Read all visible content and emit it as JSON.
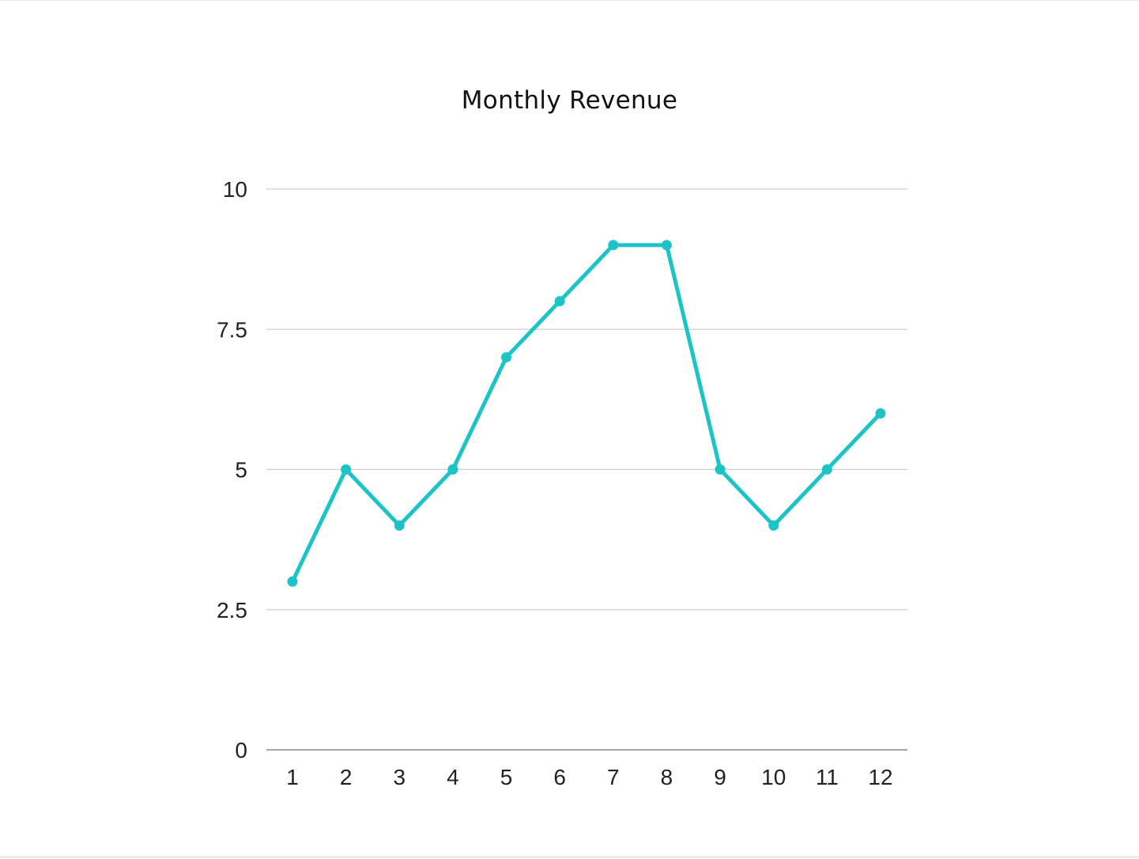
{
  "chart_data": {
    "type": "line",
    "title": "Monthly Revenue",
    "xlabel": "",
    "ylabel": "",
    "x": [
      1,
      2,
      3,
      4,
      5,
      6,
      7,
      8,
      9,
      10,
      11,
      12
    ],
    "x_tick_labels": [
      "1",
      "2",
      "3",
      "4",
      "5",
      "6",
      "7",
      "8",
      "9",
      "10",
      "11",
      "12"
    ],
    "series": [
      {
        "values": [
          3,
          5,
          4,
          5,
          7,
          8,
          9,
          9,
          5,
          4,
          5,
          6
        ],
        "color": "#1cc4c8"
      }
    ],
    "ylim": [
      0,
      10
    ],
    "y_ticks": [
      0,
      2.5,
      5,
      7.5,
      10
    ],
    "y_tick_labels": [
      "0",
      "2.5",
      "5",
      "7.5",
      "10"
    ],
    "grid": true,
    "legend": "none"
  }
}
